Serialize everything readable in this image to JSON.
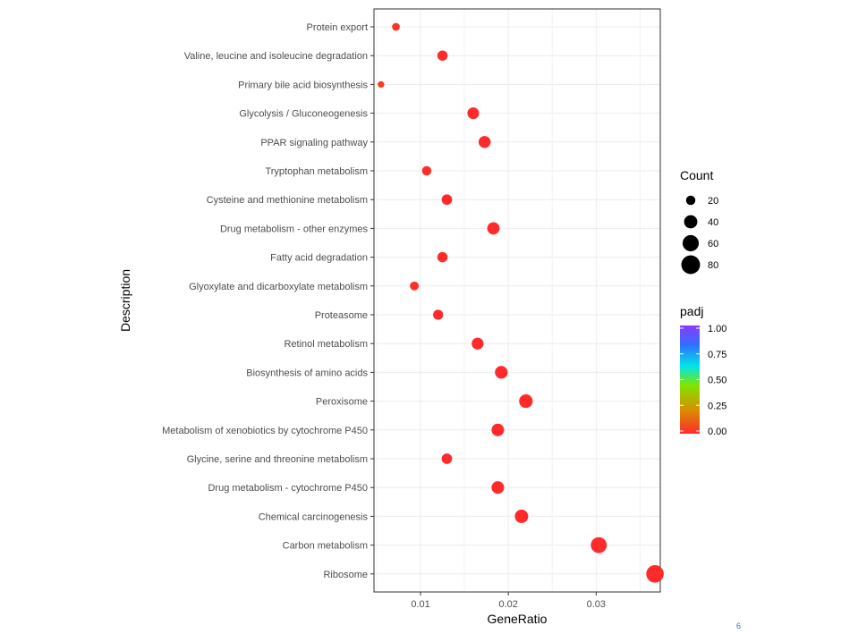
{
  "chart_data": {
    "type": "scatter",
    "xlabel": "GeneRatio",
    "ylabel": "Description",
    "xlim": [
      0.0047,
      0.0373
    ],
    "x_ticks": [
      0.01,
      0.02,
      0.03
    ],
    "x_tick_labels": [
      "0.01",
      "0.02",
      "0.03"
    ],
    "grid": true,
    "categories": [
      "Protein export",
      "Valine, leucine and isoleucine degradation",
      "Primary bile acid biosynthesis",
      "Glycolysis / Gluconeogenesis",
      "PPAR signaling pathway",
      "Tryptophan metabolism",
      "Cysteine and methionine metabolism",
      "Drug metabolism - other enzymes",
      "Fatty acid degradation",
      "Glyoxylate and dicarboxylate metabolism",
      "Proteasome",
      "Retinol metabolism",
      "Biosynthesis of amino acids",
      "Peroxisome",
      "Metabolism of xenobiotics by cytochrome P450",
      "Glycine, serine and threonine metabolism",
      "Drug metabolism - cytochrome P450",
      "Chemical carcinogenesis",
      "Carbon metabolism",
      "Ribosome"
    ],
    "gene_ratio": [
      0.0072,
      0.0125,
      0.0055,
      0.016,
      0.0173,
      0.0107,
      0.013,
      0.0183,
      0.0125,
      0.0093,
      0.012,
      0.0165,
      0.0192,
      0.022,
      0.0188,
      0.013,
      0.0188,
      0.0215,
      0.0303,
      0.0367
    ],
    "count": [
      14,
      24,
      10,
      31,
      33,
      20,
      25,
      35,
      24,
      18,
      23,
      32,
      37,
      42,
      36,
      25,
      36,
      41,
      58,
      70
    ],
    "padj": [
      0.02,
      0.0,
      0.04,
      0.0,
      0.0,
      0.01,
      0.0,
      0.0,
      0.0,
      0.01,
      0.0,
      0.0,
      0.0,
      0.0,
      0.0,
      0.0,
      0.0,
      0.0,
      0.0,
      0.0
    ],
    "legend_position": "right",
    "size_legend": {
      "title": "Count",
      "values": [
        20,
        40,
        60,
        80
      ],
      "labels": [
        "20",
        "40",
        "60",
        "80"
      ]
    },
    "color_legend": {
      "title": "padj",
      "range": [
        0.0,
        1.0
      ],
      "ticks": [
        1.0,
        0.75,
        0.5,
        0.25,
        0.0
      ],
      "tick_labels": [
        "1.00",
        "0.75",
        "0.50",
        "0.25",
        "0.00"
      ],
      "colors": [
        "#ff2a2a",
        "#d98f00",
        "#7fe600",
        "#00e6e6",
        "#2f6fff",
        "#8a3cff"
      ]
    }
  },
  "corner_number": "6"
}
